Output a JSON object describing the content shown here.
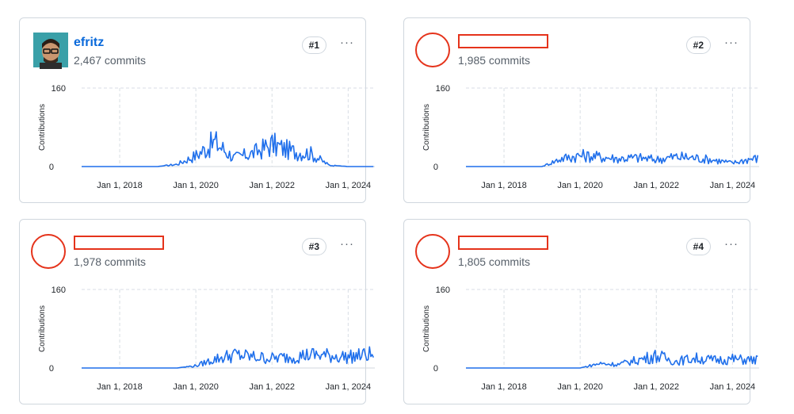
{
  "axis": {
    "ylabel": "Contributions",
    "ymax_label": "160",
    "ymin_label": "0",
    "xticks": [
      "Jan 1, 2018",
      "Jan 1, 2020",
      "Jan 1, 2022",
      "Jan 1, 2024"
    ]
  },
  "line_color": "#1f6feb",
  "redaction_color": "#e5331b",
  "contributors": [
    {
      "username": "efritz",
      "commits": "2,467 commits",
      "rank": "#1",
      "more": "···",
      "redacted": false,
      "avatar": "avatar-photo"
    },
    {
      "username": "",
      "commits": "1,985 commits",
      "rank": "#2",
      "more": "···",
      "redacted": true
    },
    {
      "username": "",
      "commits": "1,978 commits",
      "rank": "#3",
      "more": "···",
      "redacted": true
    },
    {
      "username": "",
      "commits": "1,805 commits",
      "rank": "#4",
      "more": "···",
      "redacted": true
    }
  ],
  "chart_data": [
    {
      "type": "line",
      "ylabel": "Contributions",
      "ylim": [
        0,
        160
      ],
      "x": [
        "2018",
        "2019",
        "2019.5",
        "2020",
        "2020.5",
        "2021",
        "2021.5",
        "2022",
        "2022.5",
        "2023",
        "2023.5",
        "2024",
        "2024.5"
      ],
      "series": [
        {
          "values": [
            0,
            0,
            5,
            25,
            55,
            20,
            30,
            50,
            35,
            30,
            3,
            0,
            0
          ]
        }
      ]
    },
    {
      "type": "line",
      "ylabel": "Contributions",
      "ylim": [
        0,
        160
      ],
      "x": [
        "2018",
        "2019",
        "2019.5",
        "2020",
        "2020.5",
        "2021",
        "2021.5",
        "2022",
        "2022.5",
        "2023",
        "2023.5",
        "2024",
        "2024.5"
      ],
      "series": [
        {
          "values": [
            0,
            0,
            18,
            25,
            22,
            18,
            20,
            16,
            22,
            20,
            15,
            8,
            18
          ]
        }
      ]
    },
    {
      "type": "line",
      "ylabel": "Contributions",
      "ylim": [
        0,
        160
      ],
      "x": [
        "2018",
        "2019",
        "2019.5",
        "2020",
        "2020.5",
        "2021",
        "2021.5",
        "2022",
        "2022.5",
        "2023",
        "2023.5",
        "2024",
        "2024.5"
      ],
      "series": [
        {
          "values": [
            0,
            0,
            0,
            5,
            20,
            30,
            25,
            22,
            25,
            30,
            28,
            25,
            30
          ]
        }
      ]
    },
    {
      "type": "line",
      "ylabel": "Contributions",
      "ylim": [
        0,
        160
      ],
      "x": [
        "2018",
        "2019",
        "2019.5",
        "2020",
        "2020.5",
        "2021",
        "2021.5",
        "2022",
        "2022.5",
        "2023",
        "2023.5",
        "2024",
        "2024.5"
      ],
      "series": [
        {
          "values": [
            0,
            0,
            0,
            0,
            10,
            8,
            18,
            28,
            15,
            22,
            18,
            20,
            18
          ]
        }
      ]
    }
  ]
}
